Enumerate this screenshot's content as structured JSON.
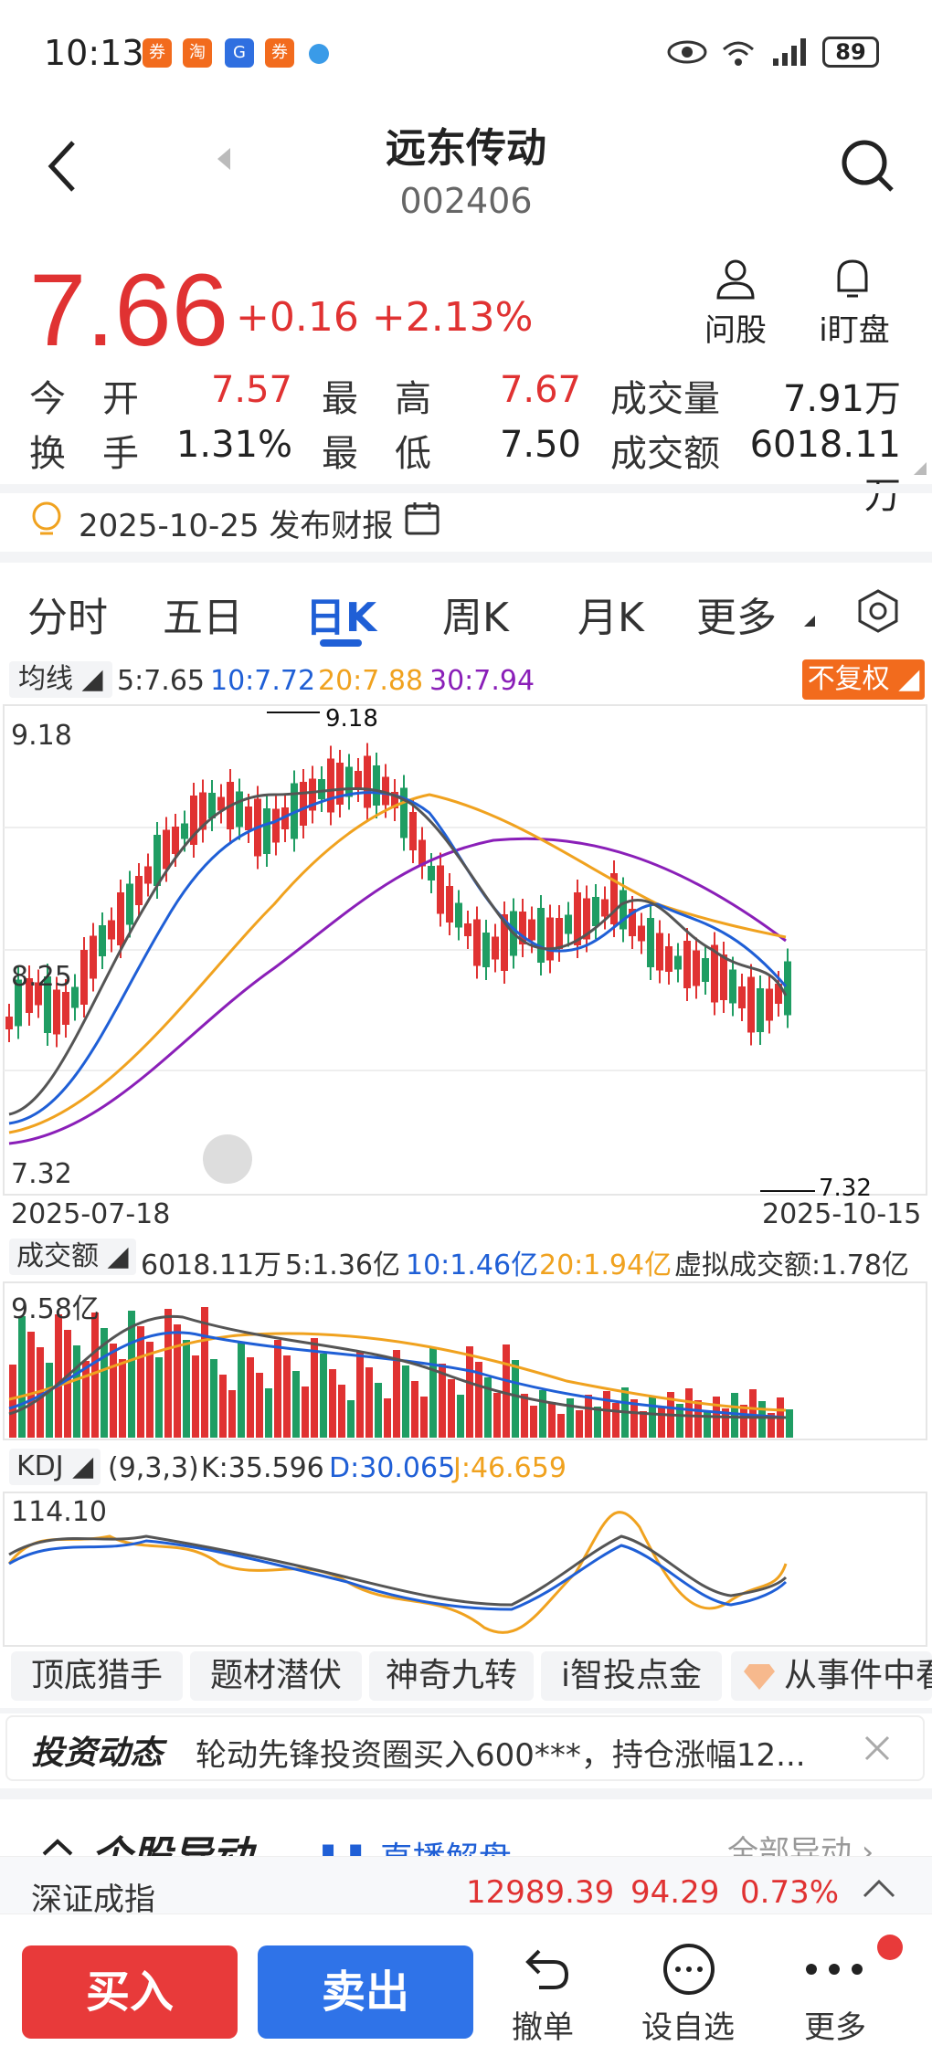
{
  "status_bar": {
    "time": "10:13",
    "battery": "89"
  },
  "header": {
    "title": "远东传动",
    "code": "002406"
  },
  "quote": {
    "price": "7.66",
    "change": "+0.16",
    "change_pct": "+2.13%",
    "ask_stock": "问股",
    "watch": "i盯盘",
    "open_label": "今　开",
    "open": "7.57",
    "high_label": "最　高",
    "high": "7.67",
    "volume_label": "成交量",
    "volume": "7.91万",
    "turnover_label": "换　手",
    "turnover": "1.31%",
    "low_label": "最　低",
    "low": "7.50",
    "amount_label": "成交额",
    "amount": "6018.11万"
  },
  "report": {
    "text": "2025-10-25 发布财报"
  },
  "tabs": [
    {
      "label": "分时"
    },
    {
      "label": "五日"
    },
    {
      "label": "日K"
    },
    {
      "label": "周K"
    },
    {
      "label": "月K"
    },
    {
      "label": "更多"
    }
  ],
  "ma_legend": {
    "label": "均线",
    "ma5": "5:7.65",
    "ma10": "10:7.72",
    "ma20": "20:7.88",
    "ma30": "30:7.94",
    "adjust": "不复权"
  },
  "kline": {
    "axis_top": "9.18",
    "axis_mid": "8.25",
    "axis_low": "7.32",
    "max_label": "9.18",
    "min_label": "7.32",
    "date_start": "2025-07-18",
    "date_end": "2025-10-15"
  },
  "volume_legend": {
    "label": "成交额",
    "current": "6018.11万",
    "ma5": "5:1.36亿",
    "ma10": "10:1.46亿",
    "ma20": "20:1.94亿",
    "virtual": "虚拟成交额:1.78亿",
    "axis_top": "9.58亿"
  },
  "kdj_legend": {
    "label": "KDJ",
    "params": "(9,3,3)",
    "k": "K:35.596",
    "d": "D:30.065",
    "j": "J:46.659",
    "axis_top": "114.10"
  },
  "chips": [
    {
      "label": "顶底猎手"
    },
    {
      "label": "题材潜伏"
    },
    {
      "label": "神奇九转"
    },
    {
      "label": "i智投点金"
    },
    {
      "label": "从事件中看"
    }
  ],
  "news": {
    "title": "投资动态",
    "text": "轮动先锋投资圈买入600***，持仓涨幅12..."
  },
  "partial_section": {
    "title": "个股异动",
    "live": "直播解盘",
    "all": "全部异动"
  },
  "index_bar": {
    "name": "深证成指",
    "value": "12989.39",
    "change": "94.29",
    "pct": "0.73%"
  },
  "bottom": {
    "buy": "买入",
    "sell": "卖出",
    "cancel": "撤单",
    "watchlist": "设自选",
    "more": "更多"
  },
  "colors": {
    "up": "#e03232",
    "down": "#1f9d63",
    "ma5": "#555555",
    "ma10": "#1f5fd6",
    "ma20": "#f0a21f",
    "ma30": "#8a1fb8",
    "accent": "#1f5fd6"
  }
}
